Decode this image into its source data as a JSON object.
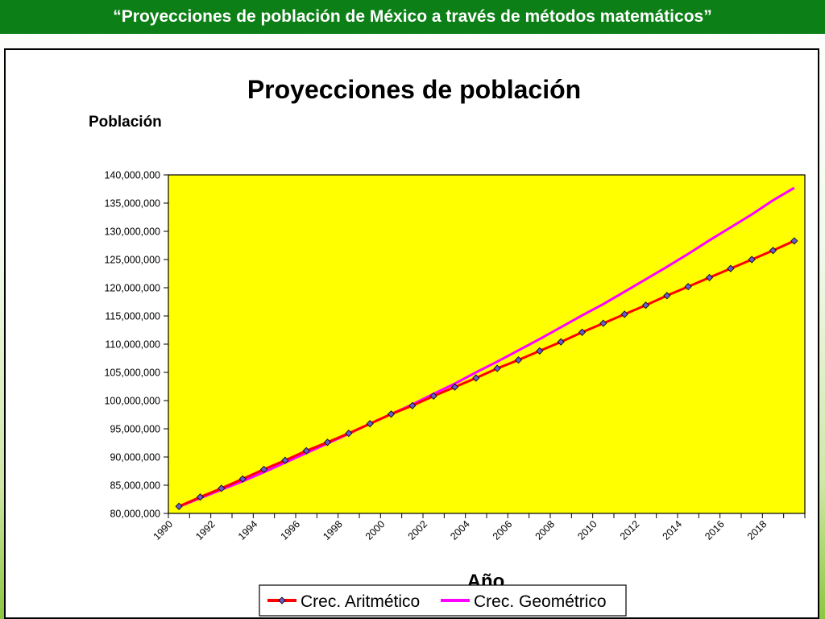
{
  "page": {
    "title": "“Proyecciones de población de México a través de métodos matemáticos”"
  },
  "colors": {
    "title_bar": "#0c7f16",
    "plot_bg": "#ffff00",
    "aritmetico": "#ff0000",
    "marker": "#6a5acd",
    "geometrico": "#ff00ff"
  },
  "chart_data": {
    "type": "line",
    "title": "Proyecciones de población",
    "ylabel": "Población",
    "xlabel": "Año",
    "ylim": [
      80000000,
      140000000
    ],
    "xlim": [
      1990,
      2020
    ],
    "y_ticks": [
      "80,000,000",
      "85,000,000",
      "90,000,000",
      "95,000,000",
      "100,000,000",
      "105,000,000",
      "110,000,000",
      "115,000,000",
      "120,000,000",
      "125,000,000",
      "130,000,000",
      "135,000,000",
      "140,000,000"
    ],
    "x_ticks": [
      "1990",
      "1992",
      "1994",
      "1996",
      "1998",
      "2000",
      "2002",
      "2004",
      "2006",
      "2008",
      "2010",
      "2012",
      "2014",
      "2016",
      "2018"
    ],
    "grid": false,
    "legend_position": "bottom",
    "x": [
      1990,
      1991,
      1992,
      1993,
      1994,
      1995,
      1996,
      1997,
      1998,
      1999,
      2000,
      2001,
      2002,
      2003,
      2004,
      2005,
      2006,
      2007,
      2008,
      2009,
      2010,
      2011,
      2012,
      2013,
      2014,
      2015,
      2016,
      2017,
      2018,
      2019
    ],
    "series": [
      {
        "name": "Crec. Aritmético",
        "values": [
          81250000,
          82900000,
          84450000,
          86100000,
          87800000,
          89400000,
          91100000,
          92600000,
          94200000,
          95900000,
          97600000,
          99100000,
          100800000,
          102400000,
          104000000,
          105700000,
          107200000,
          108800000,
          110400000,
          112100000,
          113700000,
          115300000,
          116900000,
          118600000,
          120200000,
          121800000,
          123400000,
          125000000,
          126600000,
          128300000
        ]
      },
      {
        "name": "Crec. Geométrico",
        "values": [
          81200000,
          82700000,
          84200000,
          85700000,
          87300000,
          89000000,
          90700000,
          92400000,
          94100000,
          95900000,
          97600000,
          99300000,
          101200000,
          103000000,
          105000000,
          106900000,
          108900000,
          110900000,
          113000000,
          115100000,
          117100000,
          119300000,
          121500000,
          123700000,
          126000000,
          128400000,
          130700000,
          133000000,
          135500000,
          137700000
        ]
      }
    ]
  }
}
